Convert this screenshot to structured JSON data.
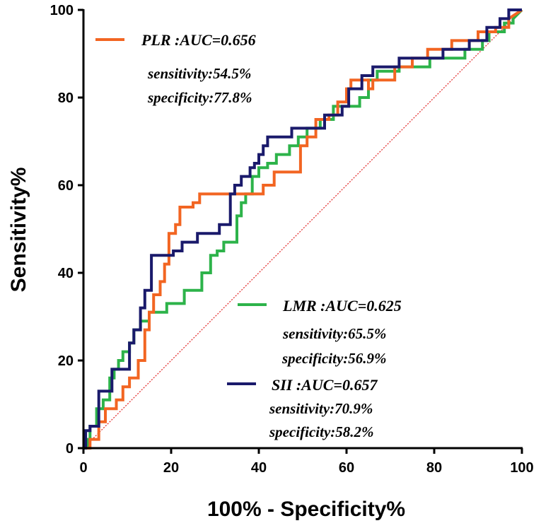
{
  "chart_data": {
    "type": "line",
    "title": "",
    "xlabel": "100% - Specificity%",
    "ylabel": "Sensitivity%",
    "xlim": [
      0,
      100
    ],
    "ylim": [
      0,
      100
    ],
    "xticks": [
      "0",
      "20",
      "40",
      "60",
      "80",
      "100"
    ],
    "yticks": [
      "0",
      "20",
      "40",
      "60",
      "80",
      "100"
    ],
    "grid": false,
    "reference_line": {
      "x": [
        0,
        100
      ],
      "y": [
        0,
        100
      ],
      "color": "#e02020",
      "style": "dotted"
    },
    "series": [
      {
        "name": "PLR",
        "color": "#f26522",
        "legend_title": "PLR :AUC=0.656",
        "sensitivity": "sensitivity:54.5%",
        "specificity": "specificity:77.8%",
        "x": [
          0,
          1.5,
          1.5,
          3.5,
          3.5,
          5,
          5,
          7.5,
          7.5,
          9,
          9,
          10.5,
          10.5,
          12.5,
          12.5,
          14,
          14,
          15,
          15,
          16,
          16,
          17.5,
          17.5,
          18.5,
          18.5,
          19.5,
          19.5,
          21,
          21,
          22,
          22,
          25,
          25,
          26.5,
          26.5,
          41,
          41,
          43.5,
          43.5,
          49.5,
          49.5,
          51,
          51,
          53,
          53,
          56,
          56,
          58,
          58,
          60,
          60,
          61,
          61,
          65,
          65,
          66,
          66,
          71,
          71,
          75,
          75,
          78.5,
          78.5,
          84,
          84,
          90,
          90,
          94,
          94,
          97,
          97,
          100
        ],
        "y": [
          0,
          0,
          2,
          2,
          6,
          6,
          9,
          9,
          11,
          11,
          14,
          14,
          16,
          16,
          20,
          20,
          27,
          27,
          31,
          31,
          35,
          35,
          38,
          38,
          42,
          42,
          49,
          49,
          51,
          51,
          55,
          55,
          56,
          56,
          58,
          58,
          60,
          60,
          63,
          63,
          69,
          69,
          71,
          71,
          75,
          75,
          76,
          76,
          79,
          79,
          82,
          82,
          84,
          84,
          82,
          82,
          84,
          84,
          87,
          87,
          89,
          89,
          91,
          91,
          93,
          93,
          95,
          95,
          96,
          96,
          98,
          100
        ]
      },
      {
        "name": "LMR",
        "color": "#2db34a",
        "legend_title": "LMR :AUC=0.625",
        "sensitivity": "sensitivity:65.5%",
        "specificity": "specificity:56.9%",
        "x": [
          0,
          1,
          1,
          1.5,
          1.5,
          3,
          3,
          4.5,
          4.5,
          6,
          6,
          7,
          7,
          8,
          8,
          9,
          9,
          10.5,
          10.5,
          11.5,
          11.5,
          13,
          13,
          15,
          15,
          19,
          19,
          23,
          23,
          27,
          27,
          29,
          29,
          30.5,
          30.5,
          32,
          32,
          35,
          35,
          36,
          36,
          37,
          37,
          38.5,
          38.5,
          40,
          40,
          42,
          42,
          44,
          44,
          47,
          47,
          49,
          49,
          51,
          51,
          54,
          54,
          57,
          57,
          63,
          63,
          65,
          65,
          67,
          67,
          72,
          72,
          79,
          79,
          87,
          87,
          91,
          91,
          92.5,
          92.5,
          96,
          96,
          98,
          98,
          100
        ],
        "y": [
          0,
          0,
          2,
          2,
          5,
          5,
          9,
          9,
          11,
          11,
          16,
          16,
          18,
          18,
          20,
          20,
          22,
          22,
          24,
          24,
          27,
          27,
          29,
          29,
          31,
          31,
          33,
          33,
          36,
          36,
          40,
          40,
          44,
          44,
          45,
          45,
          47,
          47,
          53,
          53,
          56,
          56,
          58,
          58,
          62,
          62,
          64,
          64,
          65,
          65,
          67,
          67,
          69,
          69,
          71,
          71,
          73,
          73,
          75,
          75,
          78,
          78,
          80,
          80,
          84,
          84,
          86,
          86,
          87,
          87,
          89,
          89,
          91,
          91,
          93,
          93,
          95,
          95,
          97,
          97,
          98,
          100
        ]
      },
      {
        "name": "SII",
        "color": "#1a1a6b",
        "legend_title": "SII :AUC=0.657",
        "sensitivity": "sensitivity:70.9%",
        "specificity": "specificity:58.2%",
        "x": [
          0,
          0.5,
          0.5,
          1.5,
          1.5,
          3.5,
          3.5,
          6.5,
          6.5,
          10.5,
          10.5,
          11.5,
          11.5,
          13,
          13,
          14,
          14,
          15.5,
          15.5,
          20.5,
          20.5,
          22.5,
          22.5,
          26,
          26,
          31,
          31,
          33.5,
          33.5,
          34.5,
          34.5,
          36,
          36,
          38,
          38,
          39,
          39,
          40,
          40,
          41,
          41,
          42,
          42,
          47.5,
          47.5,
          55,
          55,
          59,
          59,
          60.5,
          60.5,
          63.5,
          63.5,
          66,
          66,
          72,
          72,
          82,
          82,
          88,
          88,
          92,
          92,
          95,
          95,
          97,
          97,
          100
        ],
        "y": [
          0,
          0,
          4,
          4,
          5,
          5,
          13,
          13,
          18,
          18,
          24,
          24,
          27,
          27,
          32,
          32,
          36,
          36,
          44,
          44,
          45,
          45,
          47,
          47,
          49,
          49,
          51,
          51,
          58,
          58,
          60,
          60,
          62,
          62,
          64,
          64,
          65,
          65,
          67,
          67,
          69,
          69,
          71,
          71,
          73,
          73,
          76,
          76,
          78,
          78,
          82,
          82,
          85,
          85,
          87,
          87,
          89,
          89,
          91,
          91,
          93,
          93,
          96,
          96,
          98,
          98,
          100,
          100
        ]
      }
    ]
  }
}
